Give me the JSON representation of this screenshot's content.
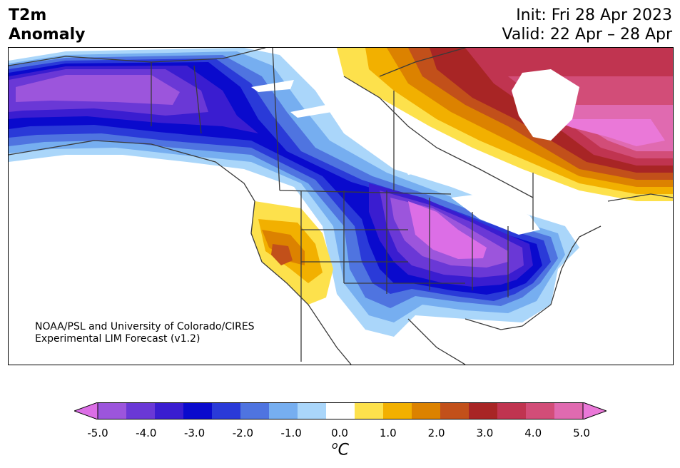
{
  "header": {
    "title_line1": "T2m",
    "title_line2": "Anomaly",
    "init": "Init: Fri 28 Apr 2023",
    "valid": "Valid: 22 Apr – 28 Apr"
  },
  "credit": {
    "line1": "NOAA/PSL and University of Colorado/CIRES",
    "line2": "Experimental LIM Forecast (v1.2)"
  },
  "colorbar": {
    "ticks": [
      "-5.0",
      "-4.0",
      "-3.0",
      "-2.0",
      "-1.0",
      "0.0",
      "1.0",
      "2.0",
      "3.0",
      "4.0",
      "5.0"
    ],
    "unit_base": "C",
    "unit_sup": "o",
    "colors": [
      "#dc6ee6",
      "#9c55dc",
      "#6a38d6",
      "#3a1dd0",
      "#0a0acd",
      "#2a3ad8",
      "#4f74e0",
      "#76aef0",
      "#aad6fa",
      "#ffffff",
      "#fde14c",
      "#f2b000",
      "#dc8200",
      "#c2501a",
      "#a82525",
      "#c03450",
      "#d24d78",
      "#e06ab0",
      "#ea78d8"
    ]
  },
  "map_colors": {
    "land_border": "#3a3a3a",
    "state_border": "#444444"
  }
}
